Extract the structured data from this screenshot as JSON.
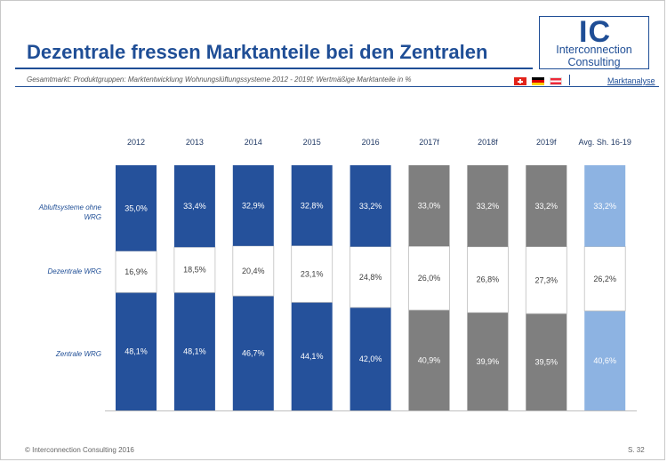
{
  "slide": {
    "title": "Dezentrale fressen Marktanteile bei den Zentralen",
    "subtitle": "Gesamtmarkt: Produktgruppen: Marktentwicklung Wohnungslüftungssysteme  2012 - 2019f; Wertmäßige Marktanteile in %",
    "section": "Marktanalyse",
    "footer": "© Interconnection Consulting 2016",
    "page": "S. 32",
    "logo": {
      "mark": "IC",
      "line1": "Interconnection",
      "line2": "Consulting"
    },
    "flags": [
      "flag-ch-icon",
      "flag-de-icon",
      "flag-at-icon"
    ]
  },
  "colors": {
    "historical": "#25519b",
    "forecast": "#7f7f7f",
    "average": "#8db3e2",
    "middle": "#ffffff",
    "accent": "#1f4e96"
  },
  "chart_data": {
    "type": "bar",
    "stacked": true,
    "normalized": true,
    "categories": [
      "2012",
      "2013",
      "2014",
      "2015",
      "2016",
      "2017f",
      "2018f",
      "2019f",
      "Avg. Sh. 16-19"
    ],
    "category_kind": [
      "historical",
      "historical",
      "historical",
      "historical",
      "historical",
      "forecast",
      "forecast",
      "forecast",
      "average"
    ],
    "series": [
      {
        "name": "Zentrale WRG",
        "values": [
          48.1,
          48.1,
          46.7,
          44.1,
          42.0,
          40.9,
          39.9,
          39.5,
          40.6
        ],
        "labels": [
          "48,1%",
          "48,1%",
          "46,7%",
          "44,1%",
          "42,0%",
          "40,9%",
          "39,9%",
          "39,5%",
          "40,6%"
        ]
      },
      {
        "name": "Dezentrale WRG",
        "values": [
          16.9,
          18.5,
          20.4,
          23.1,
          24.8,
          26.0,
          26.8,
          27.3,
          26.2
        ],
        "labels": [
          "16,9%",
          "18,5%",
          "20,4%",
          "23,1%",
          "24,8%",
          "26,0%",
          "26,8%",
          "27,3%",
          "26,2%"
        ]
      },
      {
        "name": "Abluftsysteme ohne WRG",
        "values": [
          35.0,
          33.4,
          32.9,
          32.8,
          33.2,
          33.0,
          33.2,
          33.2,
          33.2
        ],
        "labels": [
          "35,0%",
          "33,4%",
          "32,9%",
          "32,8%",
          "33,2%",
          "33,0%",
          "33,2%",
          "33,2%",
          "33,2%"
        ]
      }
    ],
    "row_labels": {
      "top_line1": "Abluftsysteme ohne",
      "top_line2": "WRG",
      "middle": "Dezentrale WRG",
      "bottom": "Zentrale WRG"
    }
  }
}
